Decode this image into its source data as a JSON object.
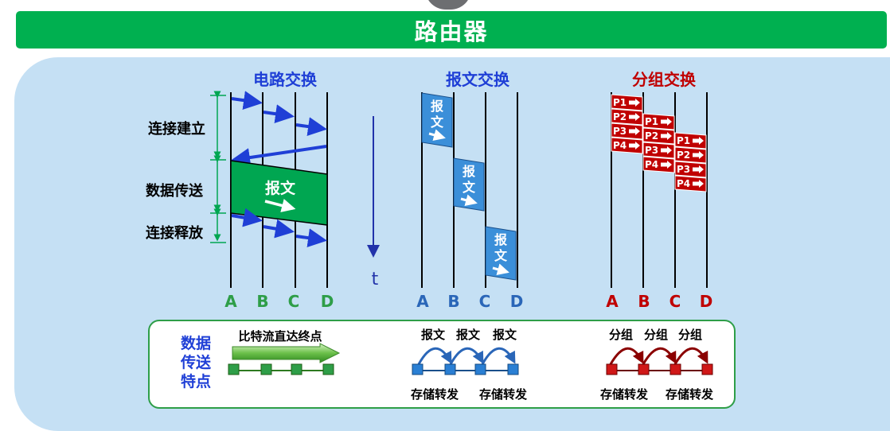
{
  "title": "路由器",
  "circuit": {
    "heading": "电路交换",
    "phase_setup": "连接建立",
    "phase_transfer": "数据传送",
    "phase_release": "连接释放",
    "message_label": "报文",
    "nodes": [
      "A",
      "B",
      "C",
      "D"
    ]
  },
  "time_label": "t",
  "message_switching": {
    "heading": "报文交换",
    "block_label": "报文",
    "nodes": [
      "A",
      "B",
      "C",
      "D"
    ]
  },
  "packet_switching": {
    "heading": "分组交换",
    "packets": [
      "P1",
      "P2",
      "P3",
      "P4"
    ],
    "nodes": [
      "A",
      "B",
      "C",
      "D"
    ]
  },
  "transfer_characteristics": {
    "label_line1": "数据",
    "label_line2": "传送",
    "label_line3": "特点",
    "circuit_text": "比特流直达终点",
    "message_labels": [
      "报文",
      "报文",
      "报文"
    ],
    "message_footer": [
      "存储转发",
      "存储转发"
    ],
    "packet_labels": [
      "分组",
      "分组",
      "分组"
    ],
    "packet_footer": [
      "存储转发",
      "存储转发"
    ]
  },
  "colors": {
    "green": "#00b050",
    "dark_green": "#00a651",
    "blue": "#1f3fd6",
    "message_blue": "#3b8fd9",
    "red": "#c00000",
    "panel": "#c5e0f4"
  }
}
